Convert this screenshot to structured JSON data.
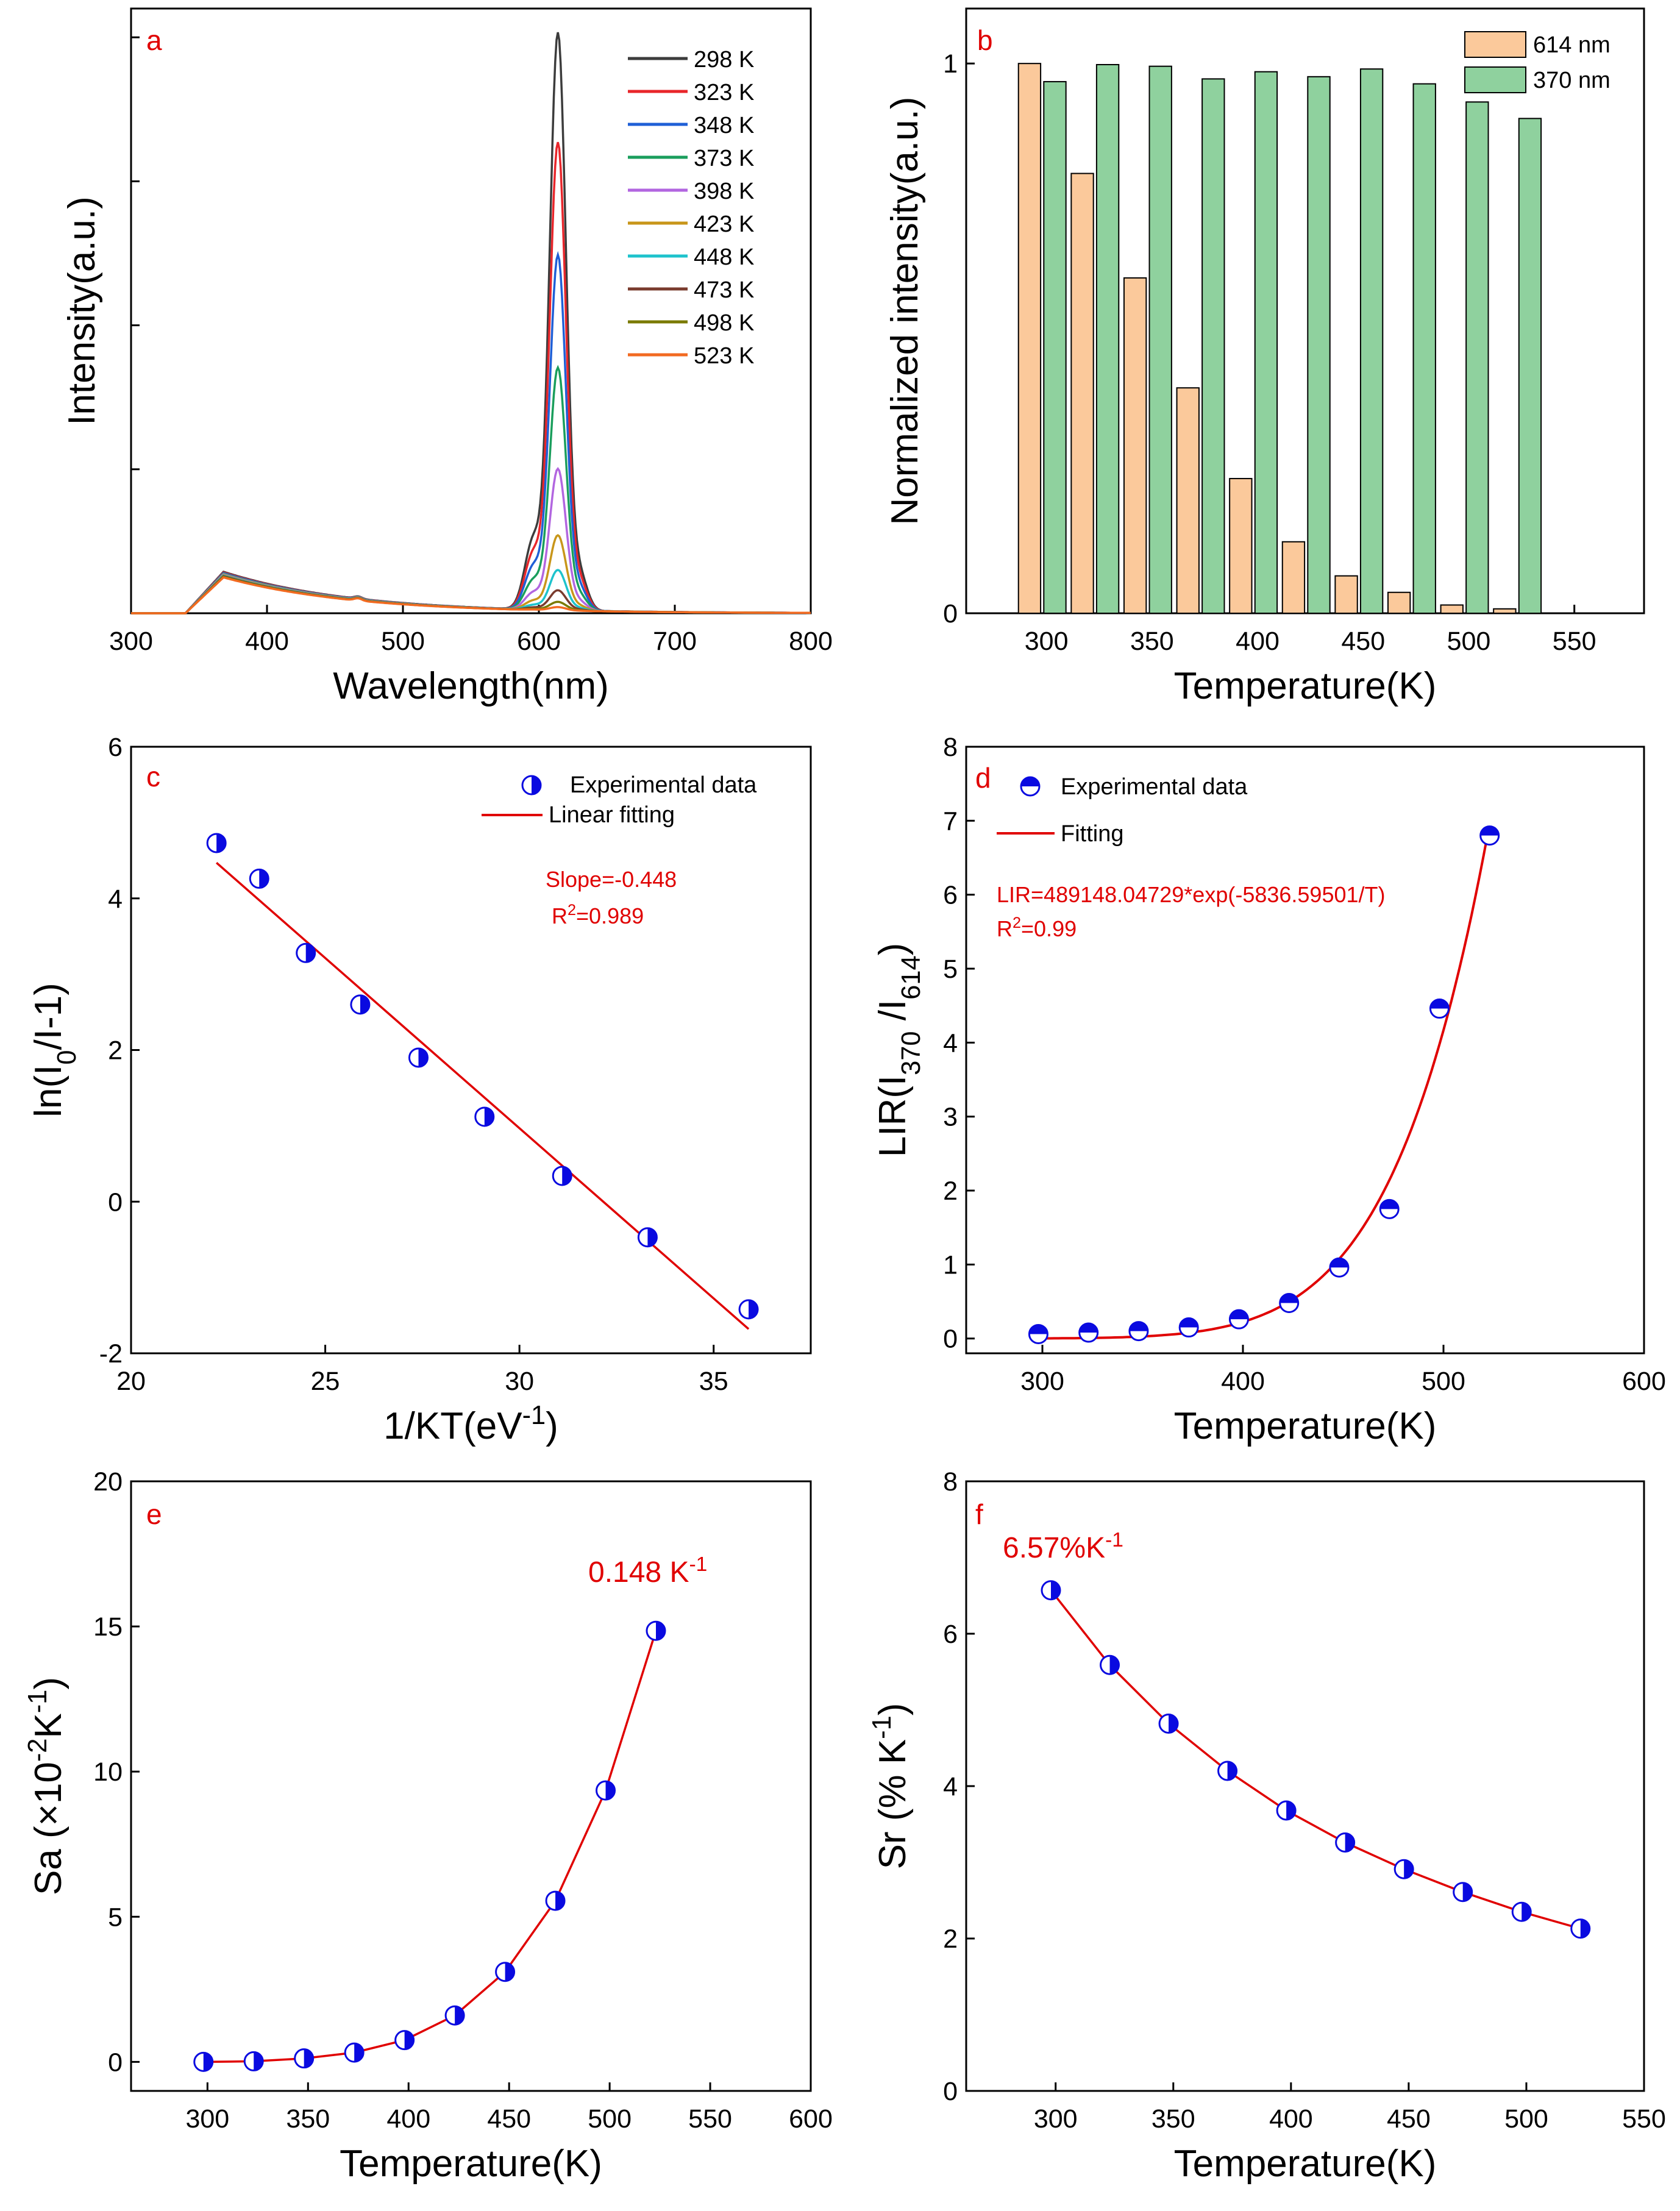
{
  "chart_data": [
    {
      "panel": "a",
      "type": "line",
      "xlabel": "Wavelength(nm)",
      "ylabel": "Intensity(a.u.)",
      "xlim": [
        300,
        800
      ],
      "xticks": [
        300,
        400,
        500,
        600,
        700,
        800
      ],
      "ylim": [
        0,
        1.05
      ],
      "legend_position": "top-right",
      "series": [
        {
          "name": "298 K",
          "color": "#3c3c3c",
          "peak": 1.0
        },
        {
          "name": "323 K",
          "color": "#e8262b",
          "peak": 0.81
        },
        {
          "name": "348 K",
          "color": "#1f5fd6",
          "peak": 0.615
        },
        {
          "name": "373 K",
          "color": "#1a9e5c",
          "peak": 0.42
        },
        {
          "name": "398 K",
          "color": "#b266e0",
          "peak": 0.245
        },
        {
          "name": "423 K",
          "color": "#c8961a",
          "peak": 0.13
        },
        {
          "name": "448 K",
          "color": "#1ec3cc",
          "peak": 0.07
        },
        {
          "name": "473 K",
          "color": "#7a3b2e",
          "peak": 0.035
        },
        {
          "name": "498 K",
          "color": "#7a7a00",
          "peak": 0.015
        },
        {
          "name": "523 K",
          "color": "#f26a21",
          "peak": 0.006
        }
      ]
    },
    {
      "panel": "b",
      "type": "bar",
      "xlabel": "Temperature(K)",
      "ylabel": "Normalized intensity(a.u.)",
      "xlim": [
        262,
        583
      ],
      "xticks": [
        300,
        350,
        400,
        450,
        500,
        550
      ],
      "ylim": [
        0,
        1.1
      ],
      "yticks": [
        0,
        1
      ],
      "legend_position": "top-right",
      "categories": [
        298,
        323,
        348,
        373,
        398,
        423,
        448,
        473,
        498,
        523
      ],
      "series": [
        {
          "name": "614 nm",
          "color": "#fbc99b",
          "values": [
            1.0,
            0.8,
            0.61,
            0.41,
            0.245,
            0.13,
            0.068,
            0.038,
            0.015,
            0.008
          ]
        },
        {
          "name": "370 nm",
          "color": "#8fd19e",
          "values": [
            0.967,
            0.998,
            0.995,
            0.972,
            0.985,
            0.976,
            0.99,
            0.963,
            0.93,
            0.9
          ]
        }
      ]
    },
    {
      "panel": "c",
      "type": "scatter",
      "xlabel": "1/KT(eV⁻¹)",
      "ylabel": "ln(I₀/I-1)",
      "xlim": [
        20,
        37.5
      ],
      "xticks": [
        20,
        25,
        30,
        35
      ],
      "ylim": [
        -2,
        6
      ],
      "yticks": [
        -2,
        0,
        2,
        4,
        6
      ],
      "legend_position": "top-right",
      "series": [
        {
          "name": "Experimental data",
          "x": [
            22.2,
            23.3,
            24.5,
            25.9,
            27.4,
            29.1,
            31.1,
            33.3,
            35.9
          ],
          "y": [
            4.73,
            4.26,
            3.28,
            2.6,
            1.9,
            1.12,
            0.34,
            -0.47,
            -1.42
          ]
        },
        {
          "name": "Linear fitting",
          "x": [
            22.2,
            35.9
          ],
          "y": [
            4.47,
            -1.68
          ]
        }
      ],
      "annotations": [
        "Slope=-0.448",
        "R²=0.989"
      ]
    },
    {
      "panel": "d",
      "type": "scatter",
      "xlabel": "Temperature(K)",
      "ylabel": "LIR(I370 /I614)",
      "xlim": [
        262,
        600
      ],
      "xticks": [
        300,
        400,
        500,
        600
      ],
      "ylim": [
        -0.2,
        8
      ],
      "yticks": [
        0,
        1,
        2,
        3,
        4,
        5,
        6,
        7,
        8
      ],
      "legend_position": "top-left",
      "series": [
        {
          "name": "Experimental data",
          "x": [
            298,
            323,
            348,
            373,
            398,
            423,
            448,
            473,
            498,
            523
          ],
          "y": [
            0.06,
            0.08,
            0.1,
            0.15,
            0.26,
            0.48,
            0.96,
            1.75,
            4.46,
            6.8
          ]
        },
        {
          "name": "Fitting",
          "function": "489148.04729*exp(-5836.59501/T)",
          "x_range": [
            298,
            523
          ]
        }
      ],
      "annotations": [
        "LIR=489148.04729*exp(-5836.59501/T)",
        "R²=0.99"
      ]
    },
    {
      "panel": "e",
      "type": "line",
      "xlabel": "Temperature(K)",
      "ylabel": "Sa (×10⁻²K⁻¹)",
      "xlim": [
        262,
        600
      ],
      "xticks": [
        300,
        350,
        400,
        450,
        500,
        550,
        600
      ],
      "ylim": [
        -1,
        20
      ],
      "yticks": [
        0,
        5,
        10,
        15,
        20
      ],
      "x": [
        298,
        323,
        348,
        373,
        398,
        423,
        448,
        473,
        498,
        523
      ],
      "y": [
        0.0,
        0.02,
        0.12,
        0.32,
        0.75,
        1.6,
        3.1,
        5.55,
        9.35,
        14.85
      ],
      "annotations": [
        "0.148 K⁻¹"
      ]
    },
    {
      "panel": "f",
      "type": "line",
      "xlabel": "Temperature(K)",
      "ylabel": "Sr (% K⁻¹)",
      "xlim": [
        262,
        550
      ],
      "xticks": [
        300,
        350,
        400,
        450,
        500,
        550
      ],
      "ylim": [
        0,
        8
      ],
      "yticks": [
        0,
        2,
        4,
        6,
        8
      ],
      "x": [
        298,
        323,
        348,
        373,
        398,
        423,
        448,
        473,
        498,
        523
      ],
      "y": [
        6.57,
        5.59,
        4.82,
        4.2,
        3.68,
        3.26,
        2.91,
        2.61,
        2.35,
        2.13
      ],
      "annotations": [
        "6.57%K⁻¹"
      ]
    }
  ]
}
